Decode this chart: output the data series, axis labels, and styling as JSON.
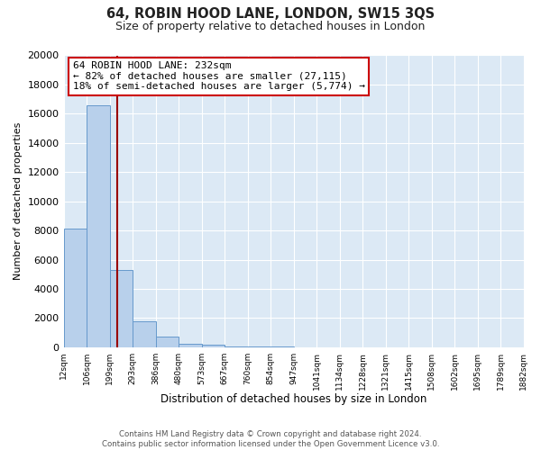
{
  "title": "64, ROBIN HOOD LANE, LONDON, SW15 3QS",
  "subtitle": "Size of property relative to detached houses in London",
  "xlabel": "Distribution of detached houses by size in London",
  "ylabel": "Number of detached properties",
  "bin_labels": [
    "12sqm",
    "106sqm",
    "199sqm",
    "293sqm",
    "386sqm",
    "480sqm",
    "573sqm",
    "667sqm",
    "760sqm",
    "854sqm",
    "947sqm",
    "1041sqm",
    "1134sqm",
    "1228sqm",
    "1321sqm",
    "1415sqm",
    "1508sqm",
    "1602sqm",
    "1695sqm",
    "1789sqm",
    "1882sqm"
  ],
  "bar_values": [
    8150,
    16600,
    5300,
    1750,
    700,
    250,
    150,
    80,
    50,
    30,
    20,
    10,
    5,
    0,
    0,
    0,
    0,
    0,
    0,
    0
  ],
  "bar_color": "#b8d0eb",
  "bar_edge_color": "#6699cc",
  "vline_color": "#990000",
  "ylim": [
    0,
    20000
  ],
  "yticks": [
    0,
    2000,
    4000,
    6000,
    8000,
    10000,
    12000,
    14000,
    16000,
    18000,
    20000
  ],
  "annotation_title": "64 ROBIN HOOD LANE: 232sqm",
  "annotation_line1": "← 82% of detached houses are smaller (27,115)",
  "annotation_line2": "18% of semi-detached houses are larger (5,774) →",
  "annotation_box_color": "#ffffff",
  "annotation_box_edge": "#cc0000",
  "footer_line1": "Contains HM Land Registry data © Crown copyright and database right 2024.",
  "footer_line2": "Contains public sector information licensed under the Open Government Licence v3.0.",
  "fig_bg_color": "#ffffff",
  "plot_bg_color": "#dce9f5"
}
